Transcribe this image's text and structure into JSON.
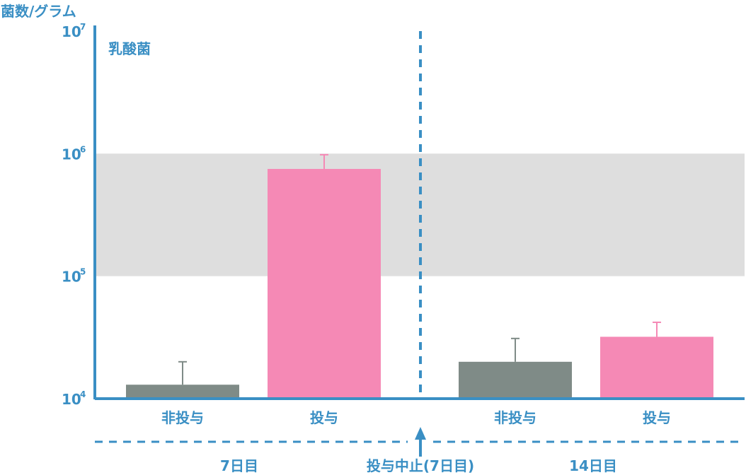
{
  "chart_data": {
    "type": "bar",
    "ylabel": "菌数/グラム",
    "annotation": "乳酸菌",
    "y_scale": "log",
    "ylim": [
      10000,
      10000000
    ],
    "y_ticks": [
      {
        "base": "10",
        "exp": "4"
      },
      {
        "base": "10",
        "exp": "5"
      },
      {
        "base": "10",
        "exp": "6"
      },
      {
        "base": "10",
        "exp": "7"
      }
    ],
    "shaded_band": [
      100000,
      1000000
    ],
    "groups": [
      {
        "label": "7日目",
        "bars": [
          {
            "category": "非投与",
            "value": 13000,
            "error_top": 20000,
            "color": "#7f8b87",
            "error_color": "#7f8b87"
          },
          {
            "category": "投与",
            "value": 750000,
            "error_top": 980000,
            "color": "#f589b5",
            "error_color": "#f589b5"
          }
        ]
      },
      {
        "label": "14日目",
        "bars": [
          {
            "category": "非投与",
            "value": 20000,
            "error_top": 31000,
            "color": "#7f8b87",
            "error_color": "#7f8b87"
          },
          {
            "category": "投与",
            "value": 32000,
            "error_top": 42000,
            "color": "#f589b5",
            "error_color": "#f589b5"
          }
        ]
      }
    ],
    "divider_label": "投与中止(7日目)",
    "colors": {
      "axis": "#3a8fc4",
      "band": "#dedede",
      "text": "#3a8fc4"
    }
  }
}
